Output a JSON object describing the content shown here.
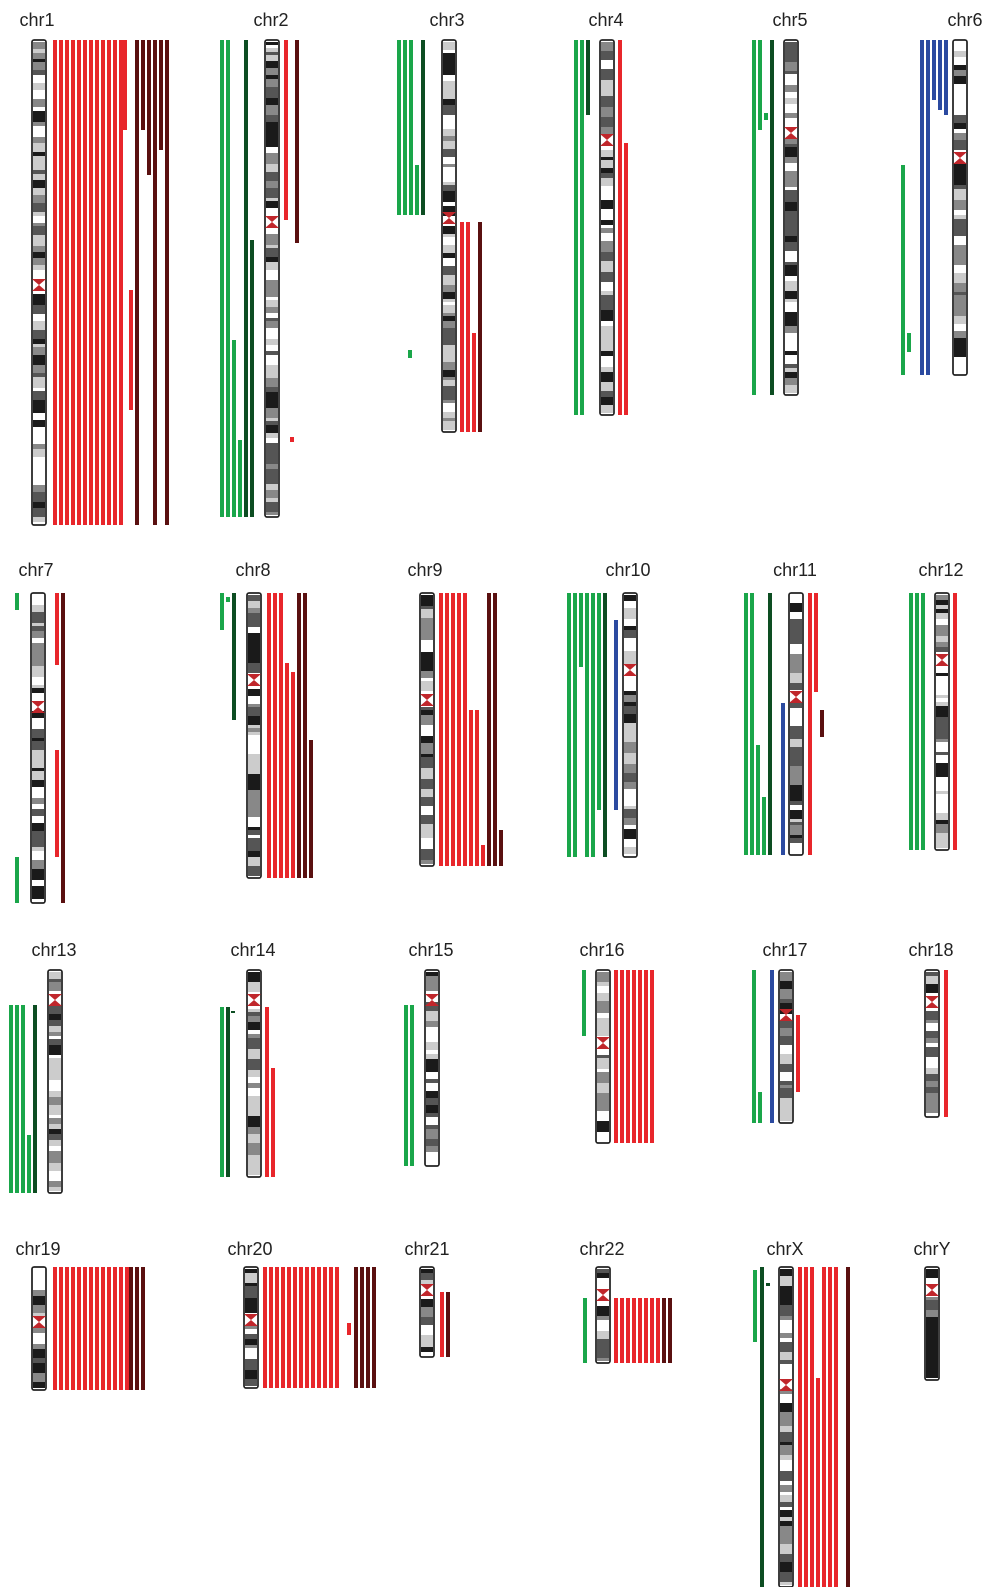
{
  "labels": [
    "chr1",
    "chr2",
    "chr3",
    "chr4",
    "chr5",
    "chr6",
    "chr7",
    "chr8",
    "chr9",
    "chr10",
    "chr11",
    "chr12",
    "chr13",
    "chr14",
    "chr15",
    "chr16",
    "chr17",
    "chr18",
    "chr19",
    "chr20",
    "chr21",
    "chr22",
    "chrX",
    "chrY"
  ]
}
